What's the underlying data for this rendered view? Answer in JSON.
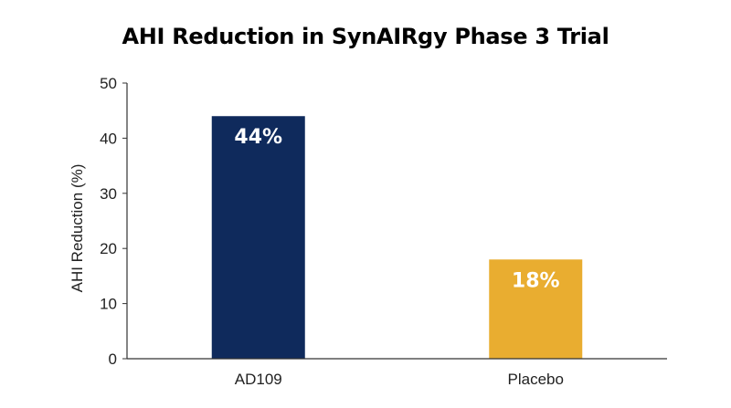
{
  "chart_data": {
    "type": "bar",
    "title": "AHI Reduction in SynAIRgy Phase 3 Trial",
    "xlabel": "",
    "ylabel": "AHI Reduction (%)",
    "ylim": [
      0,
      50
    ],
    "yticks": [
      0,
      10,
      20,
      30,
      40,
      50
    ],
    "categories": [
      "AD109",
      "Placebo"
    ],
    "values": [
      44,
      18
    ],
    "data_labels": [
      "44%",
      "18%"
    ],
    "colors": [
      "#0f2a5c",
      "#e9ad30"
    ],
    "grid": false,
    "legend": "none"
  }
}
